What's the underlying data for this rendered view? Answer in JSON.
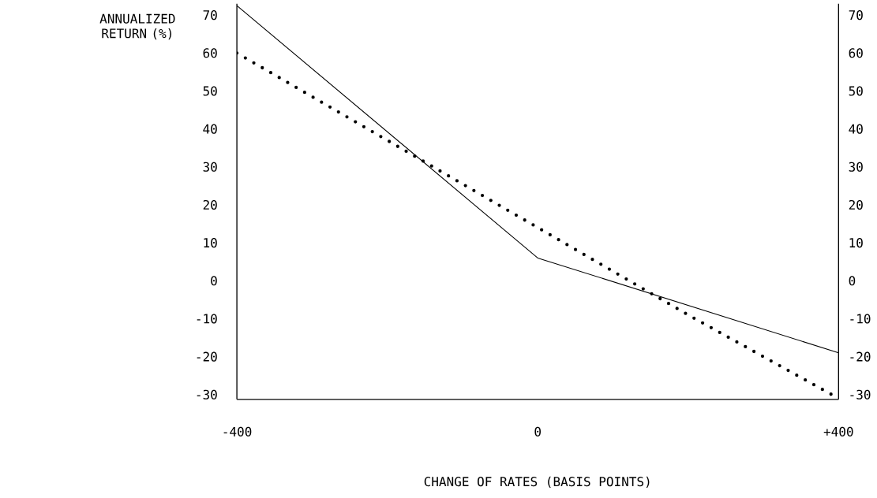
{
  "chart_data": {
    "type": "line",
    "xlabel": "CHANGE OF RATES (BASIS POINTS)",
    "ylabel": "ANNUALIZED RETURN (%)",
    "x": [
      -400,
      0,
      400
    ],
    "series": [
      {
        "color": "#000000",
        "line_style": "solid",
        "values": [
          72.5,
          6,
          -19
        ]
      },
      {
        "color": "#000000",
        "line_style": "dotted",
        "x": [
          -400,
          -200,
          0,
          200,
          400
        ],
        "values": [
          60,
          37,
          14,
          -9,
          -31
        ]
      }
    ],
    "xlim": [
      -400,
      400
    ],
    "xticks": [
      -400,
      0,
      {
        "value": 400,
        "label": "+400"
      }
    ],
    "ylim": [
      -31.25,
      73
    ],
    "yticks": [
      -30,
      -20,
      -10,
      0,
      10,
      20,
      30,
      40,
      50,
      60,
      70
    ],
    "y2lim": [
      -31.25,
      73
    ],
    "y2ticks": [
      -30,
      -20,
      -10,
      0,
      10,
      20,
      30,
      40,
      50,
      60,
      70
    ],
    "marker": "none"
  }
}
